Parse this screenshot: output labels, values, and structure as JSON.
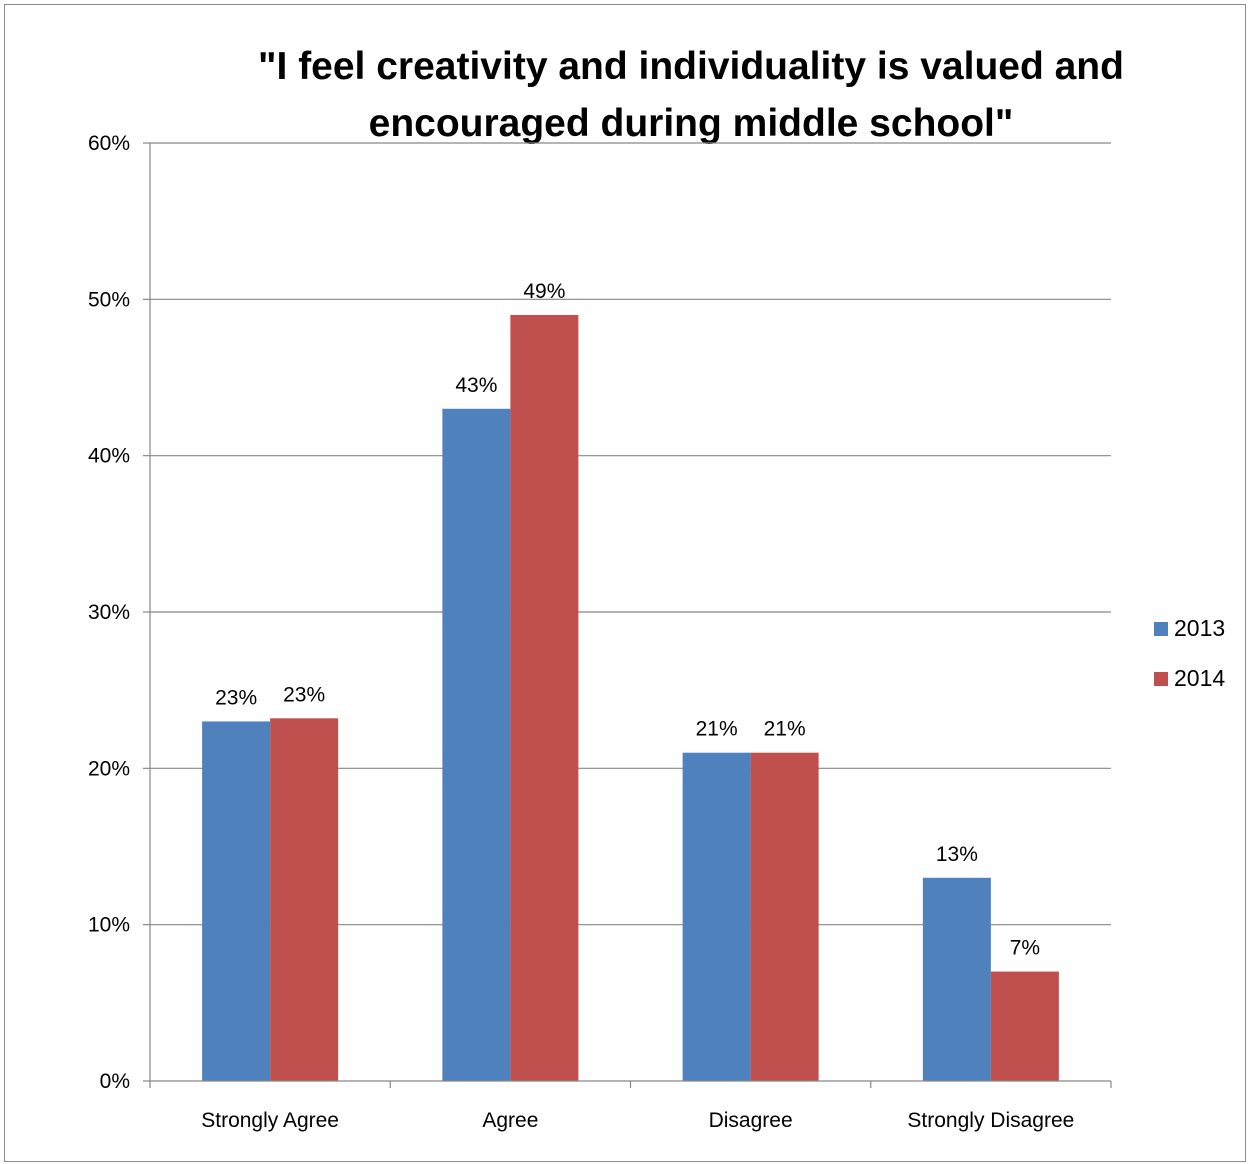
{
  "chart_data": {
    "type": "bar",
    "title_lines": [
      "\"I feel creativity and individuality is valued and",
      "encouraged during middle school\""
    ],
    "categories": [
      "Strongly Agree",
      "Agree",
      "Disagree",
      "Strongly Disagree"
    ],
    "series": [
      {
        "name": "2013",
        "color": "#4F81BD",
        "values": [
          23,
          43,
          21,
          13
        ],
        "labels": [
          "23%",
          "43%",
          "21%",
          "13%"
        ]
      },
      {
        "name": "2014",
        "color": "#C0504D",
        "values": [
          23.2,
          49,
          21,
          7
        ],
        "labels": [
          "23%",
          "49%",
          "21%",
          "7%"
        ]
      }
    ],
    "ylim": [
      0,
      60
    ],
    "yticks": [
      0,
      10,
      20,
      30,
      40,
      50,
      60
    ],
    "ytick_labels": [
      "0%",
      "10%",
      "20%",
      "30%",
      "40%",
      "50%",
      "60%"
    ],
    "grid": true,
    "legend_position": "right",
    "axis_accent_color": "#E3161B"
  }
}
